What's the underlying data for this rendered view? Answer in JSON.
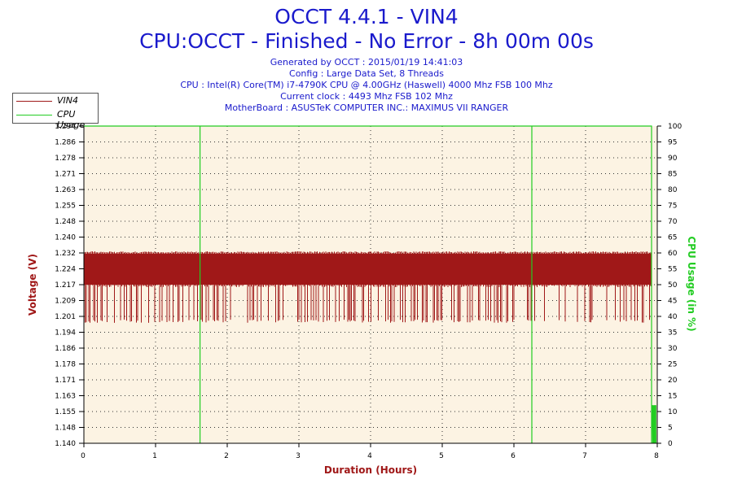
{
  "header": {
    "title": "OCCT 4.4.1 - VIN4",
    "subtitle": "CPU:OCCT - Finished - No Error - 8h 00m 00s",
    "info_lines": [
      "Generated by OCCT : 2015/01/19 14:41:03",
      "Config : Large Data Set, 8 Threads",
      "CPU : Intel(R) Core(TM) i7-4790K CPU @ 4.00GHz (Haswell) 4000 Mhz FSB 100 Mhz",
      "Current clock : 4493 Mhz FSB 102 Mhz",
      "MotherBoard : ASUSTeK COMPUTER INC.: MAXIMUS VII RANGER"
    ]
  },
  "legend": {
    "position": "top-left",
    "items": [
      {
        "label": "VIN4",
        "color": "#a01818"
      },
      {
        "label": "CPU Usage",
        "color": "#22cc22"
      }
    ]
  },
  "colors": {
    "plot_bg": "#fcf3e3",
    "voltage": "#a01818",
    "cpu": "#22cc22",
    "axis_text": "#000000"
  },
  "chart_data": {
    "type": "line",
    "grid": true,
    "xlabel": "Duration (Hours)",
    "ylabel": "Voltage (V)",
    "y2label": "CPU Usage (in %)",
    "xlim": [
      0,
      8
    ],
    "ylim": [
      1.14,
      1.294
    ],
    "y2lim": [
      0,
      100
    ],
    "x_ticks": [
      "0",
      "1",
      "2",
      "3",
      "4",
      "5",
      "6",
      "7",
      "8"
    ],
    "y_ticks": [
      "1.140",
      "1.148",
      "1.155",
      "1.163",
      "1.171",
      "1.178",
      "1.186",
      "1.194",
      "1.201",
      "1.209",
      "1.217",
      "1.224",
      "1.232",
      "1.240",
      "1.248",
      "1.255",
      "1.263",
      "1.271",
      "1.278",
      "1.286",
      "1.294"
    ],
    "y2_ticks": [
      "0",
      "5",
      "10",
      "15",
      "20",
      "25",
      "30",
      "35",
      "40",
      "45",
      "50",
      "55",
      "60",
      "65",
      "70",
      "75",
      "80",
      "85",
      "90",
      "95",
      "100"
    ],
    "series": [
      {
        "name": "VIN4",
        "axis": "left",
        "band": {
          "x_start": 0,
          "x_end": 7.92,
          "low": 1.217,
          "high": 1.232
        },
        "occasional_low": 1.2
      },
      {
        "name": "CPU Usage",
        "axis": "right",
        "x": [
          0,
          1.62,
          1.62,
          1.62,
          6.25,
          6.25,
          6.25,
          7.92,
          7.92,
          7.93,
          7.94,
          7.95,
          7.96,
          7.97,
          7.98
        ],
        "values": [
          100,
          100,
          0,
          100,
          100,
          0,
          100,
          100,
          0,
          12,
          3,
          11,
          2,
          12,
          0
        ]
      }
    ]
  }
}
